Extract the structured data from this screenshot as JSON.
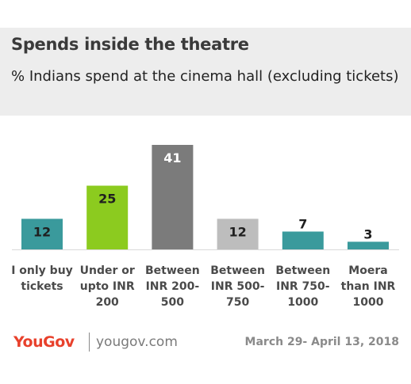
{
  "header": {
    "title": "Spends inside the theatre",
    "subtitle": "% Indians spend at the cinema hall (excluding tickets)"
  },
  "chart_data": {
    "type": "bar",
    "title": "Spends inside the theatre",
    "subtitle": "% Indians spend at the cinema hall (excluding tickets)",
    "categories": [
      [
        "I only buy",
        "tickets"
      ],
      [
        "Under or",
        "upto INR",
        "200"
      ],
      [
        "Between",
        "INR 200-",
        "500"
      ],
      [
        "Between",
        "INR 500-",
        "750"
      ],
      [
        "Between",
        "INR 750-",
        "1000"
      ],
      [
        "Moera",
        "than INR",
        "1000"
      ]
    ],
    "values": [
      12,
      25,
      41,
      12,
      7,
      3
    ],
    "colors": [
      "#3a9a9c",
      "#8ccb1f",
      "#7b7b7b",
      "#bdbdbd",
      "#3a9a9c",
      "#3a9a9c"
    ],
    "value_label_colors": [
      "#1f1f1f",
      "#1f1f1f",
      "#ffffff",
      "#1f1f1f",
      "#1f1f1f",
      "#1f1f1f"
    ],
    "xlabel": "",
    "ylabel": "",
    "grid": false,
    "legend": "none"
  },
  "footer": {
    "logo": "YouGov",
    "site": "yougov.com",
    "date": "March 29- April 13, 2018"
  },
  "colors": {
    "brand": "#e8412c",
    "header_bg": "#ededed"
  }
}
